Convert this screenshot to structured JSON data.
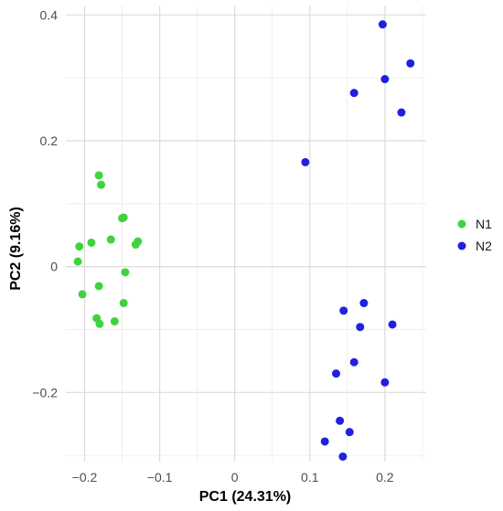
{
  "chart_data": {
    "type": "scatter",
    "title": "",
    "xlabel": "PC1 (24.31%)",
    "ylabel": "PC2 (9.16%)",
    "xlim": [
      -0.225,
      0.255
    ],
    "ylim": [
      -0.31,
      0.415
    ],
    "x_ticks": [
      -0.2,
      -0.1,
      0,
      0.1,
      0.2
    ],
    "x_tick_labels": [
      "−0.2",
      "−0.1",
      "0",
      "0.1",
      "0.2"
    ],
    "y_ticks": [
      -0.2,
      0,
      0.2,
      0.4
    ],
    "y_tick_labels": [
      "−0.2",
      "0",
      "0.2",
      "0.4"
    ],
    "grid": true,
    "legend_position": "right",
    "series": [
      {
        "name": "N1",
        "color": "#3fd33f",
        "points": [
          {
            "x": -0.181,
            "y": 0.145
          },
          {
            "x": -0.178,
            "y": 0.13
          },
          {
            "x": -0.15,
            "y": 0.077
          },
          {
            "x": -0.148,
            "y": 0.078
          },
          {
            "x": -0.165,
            "y": 0.043
          },
          {
            "x": -0.129,
            "y": 0.04
          },
          {
            "x": -0.132,
            "y": 0.035
          },
          {
            "x": -0.191,
            "y": 0.038
          },
          {
            "x": -0.207,
            "y": 0.032
          },
          {
            "x": -0.209,
            "y": 0.008
          },
          {
            "x": -0.146,
            "y": -0.009
          },
          {
            "x": -0.181,
            "y": -0.031
          },
          {
            "x": -0.203,
            "y": -0.044
          },
          {
            "x": -0.148,
            "y": -0.058
          },
          {
            "x": -0.184,
            "y": -0.082
          },
          {
            "x": -0.18,
            "y": -0.091
          },
          {
            "x": -0.16,
            "y": -0.087
          }
        ]
      },
      {
        "name": "N2",
        "color": "#2020e0",
        "points": [
          {
            "x": 0.197,
            "y": 0.385
          },
          {
            "x": 0.234,
            "y": 0.323
          },
          {
            "x": 0.2,
            "y": 0.298
          },
          {
            "x": 0.159,
            "y": 0.276
          },
          {
            "x": 0.222,
            "y": 0.245
          },
          {
            "x": 0.094,
            "y": 0.166
          },
          {
            "x": 0.172,
            "y": -0.058
          },
          {
            "x": 0.145,
            "y": -0.07
          },
          {
            "x": 0.21,
            "y": -0.092
          },
          {
            "x": 0.167,
            "y": -0.096
          },
          {
            "x": 0.159,
            "y": -0.152
          },
          {
            "x": 0.135,
            "y": -0.17
          },
          {
            "x": 0.2,
            "y": -0.184
          },
          {
            "x": 0.14,
            "y": -0.245
          },
          {
            "x": 0.153,
            "y": -0.263
          },
          {
            "x": 0.12,
            "y": -0.278
          },
          {
            "x": 0.144,
            "y": -0.302
          }
        ]
      }
    ]
  }
}
